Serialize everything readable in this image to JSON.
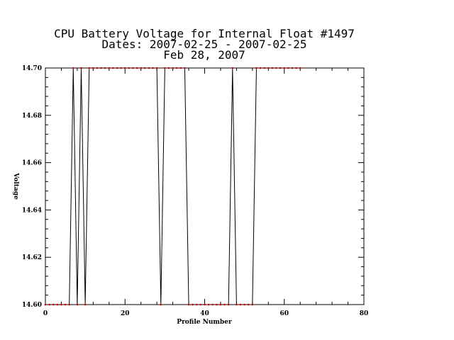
{
  "chart_data": {
    "type": "line",
    "title_lines": [
      "CPU Battery Voltage for Internal Float #1497",
      "Dates:  2007-02-25 -  2007-02-25",
      "Feb 28, 2007"
    ],
    "xlabel": "Profile Number",
    "ylabel": "Voltage",
    "xlim": [
      0,
      80
    ],
    "ylim": [
      14.6,
      14.7
    ],
    "x_ticks": [
      0,
      20,
      40,
      60,
      80
    ],
    "y_ticks": [
      14.6,
      14.62,
      14.64,
      14.66,
      14.68,
      14.7
    ],
    "y_tick_labels": [
      "14.60",
      "14.62",
      "14.64",
      "14.66",
      "14.68",
      "14.70"
    ],
    "x_minor_step": 4,
    "y_minor_step": 0.004,
    "grid": false,
    "line_color": "#000000",
    "marker_color": "#cc0000",
    "series": [
      {
        "x": [
          0,
          1,
          2,
          3,
          4,
          5,
          6,
          7,
          8,
          9,
          10,
          11,
          12,
          13,
          14,
          15,
          16,
          17,
          18,
          19,
          20,
          21,
          22,
          23,
          24,
          25,
          26,
          27,
          28,
          29,
          30,
          31,
          32,
          33,
          34,
          35,
          36,
          37,
          38,
          39,
          40,
          41,
          42,
          43,
          44,
          45,
          46,
          47,
          48,
          49,
          50,
          51,
          52,
          53,
          54,
          55,
          56,
          57,
          58,
          59,
          60,
          61,
          62,
          63,
          64
        ],
        "y": [
          14.6,
          14.6,
          14.6,
          14.6,
          14.6,
          14.6,
          14.6,
          14.7,
          14.6,
          14.7,
          14.6,
          14.7,
          14.7,
          14.7,
          14.7,
          14.7,
          14.7,
          14.7,
          14.7,
          14.7,
          14.7,
          14.7,
          14.7,
          14.7,
          14.7,
          14.7,
          14.7,
          14.7,
          14.7,
          14.6,
          14.7,
          14.7,
          14.7,
          14.7,
          14.7,
          14.7,
          14.6,
          14.6,
          14.6,
          14.6,
          14.6,
          14.6,
          14.6,
          14.6,
          14.6,
          14.6,
          14.6,
          14.7,
          14.6,
          14.6,
          14.6,
          14.6,
          14.6,
          14.7,
          14.7,
          14.7,
          14.7,
          14.7,
          14.7,
          14.7,
          14.7,
          14.7,
          14.7,
          14.7,
          14.7
        ]
      }
    ]
  }
}
